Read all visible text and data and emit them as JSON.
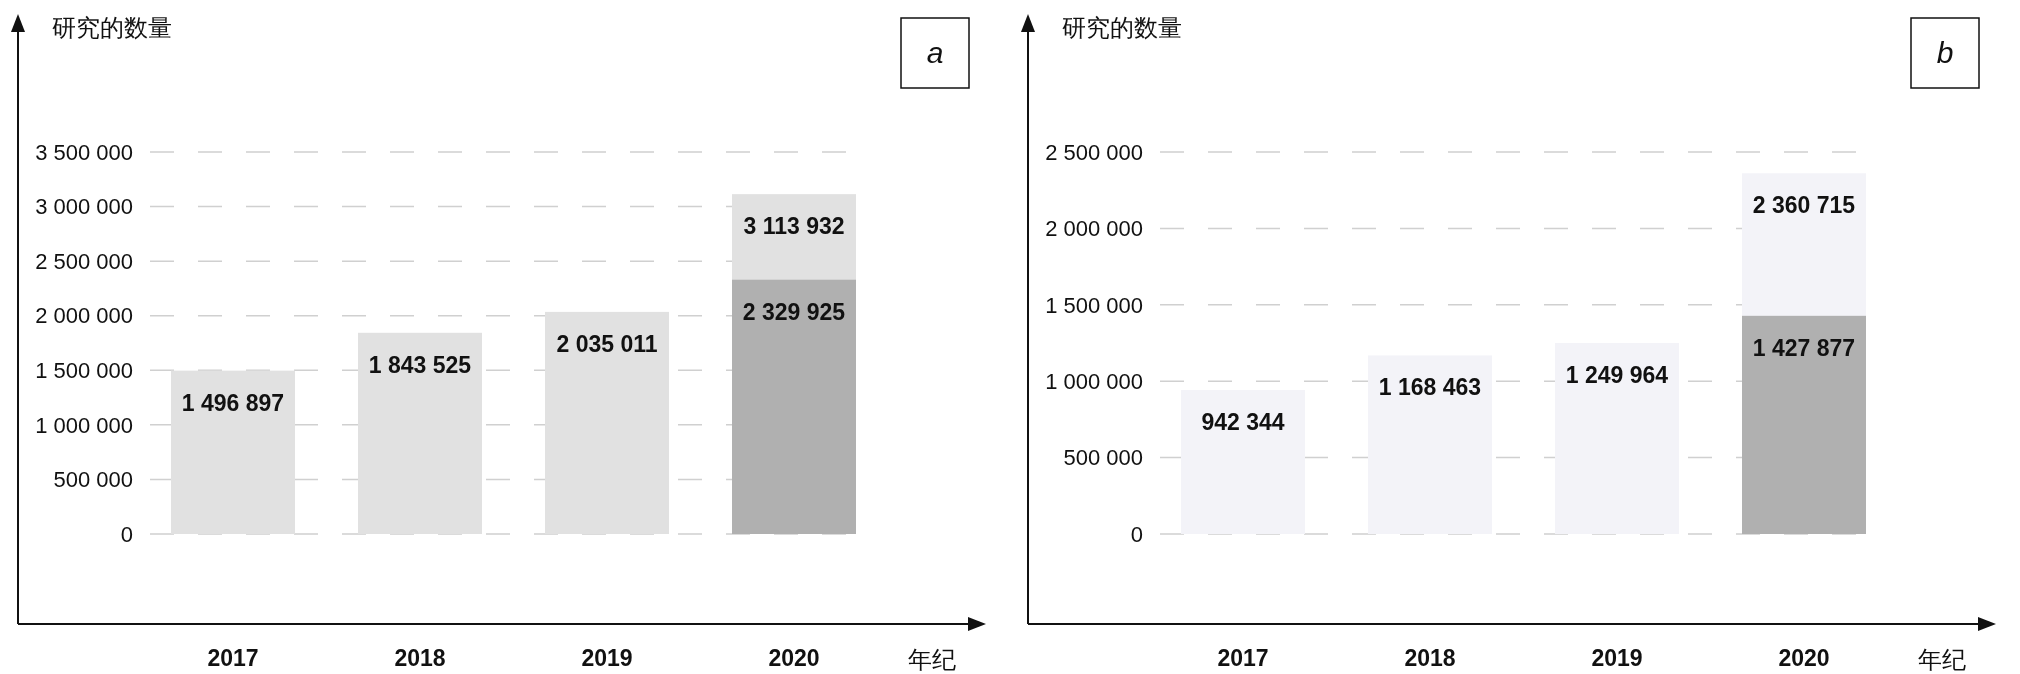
{
  "chart_data": [
    {
      "type": "bar",
      "ylabel": "研究的数量",
      "xlabel": "年纪",
      "annotations": [
        "a"
      ],
      "categories": [
        "2017",
        "2018",
        "2019",
        "2020"
      ],
      "grid": "y",
      "ylim": [
        0,
        3500000
      ],
      "yticks": [
        {
          "value": 0,
          "label": "0"
        },
        {
          "value": 500000,
          "label": "500 000"
        },
        {
          "value": 1000000,
          "label": "1 000 000"
        },
        {
          "value": 1500000,
          "label": "1 500 000"
        },
        {
          "value": 2000000,
          "label": "2 000 000"
        },
        {
          "value": 2500000,
          "label": "2 500 000"
        },
        {
          "value": 3000000,
          "label": "3 000 000"
        },
        {
          "value": 3500000,
          "label": "3 500 000"
        }
      ],
      "series": [
        {
          "color": "#e1e1e1",
          "values": [
            1496897,
            1843525,
            2035011,
            3113932
          ],
          "value_labels": [
            "1 496 897",
            "1 843 525",
            "2 035 011",
            "3 113 932"
          ]
        },
        {
          "color": "#b0b0b0",
          "values": [
            null,
            null,
            null,
            2329925
          ],
          "value_labels": [
            null,
            null,
            null,
            "2 329 925"
          ]
        }
      ]
    },
    {
      "type": "bar",
      "ylabel": "研究的数量",
      "xlabel": "年纪",
      "annotations": [
        "b"
      ],
      "categories": [
        "2017",
        "2018",
        "2019",
        "2020"
      ],
      "grid": "y",
      "ylim": [
        0,
        2500000
      ],
      "yticks": [
        {
          "value": 0,
          "label": "0"
        },
        {
          "value": 500000,
          "label": "500 000"
        },
        {
          "value": 1000000,
          "label": "1 000 000"
        },
        {
          "value": 1500000,
          "label": "1 500 000"
        },
        {
          "value": 2000000,
          "label": "2 000 000"
        },
        {
          "value": 2500000,
          "label": "2 500 000"
        }
      ],
      "series": [
        {
          "color": "#f3f3f8",
          "values": [
            942344,
            1168463,
            1249964,
            2360715
          ],
          "value_labels": [
            "942 344",
            "1 168 463",
            "1 249 964",
            "2 360 715"
          ]
        },
        {
          "color": "#b0b0b0",
          "values": [
            null,
            null,
            null,
            1427877
          ],
          "value_labels": [
            null,
            null,
            null,
            "1 427 877"
          ]
        }
      ]
    }
  ]
}
